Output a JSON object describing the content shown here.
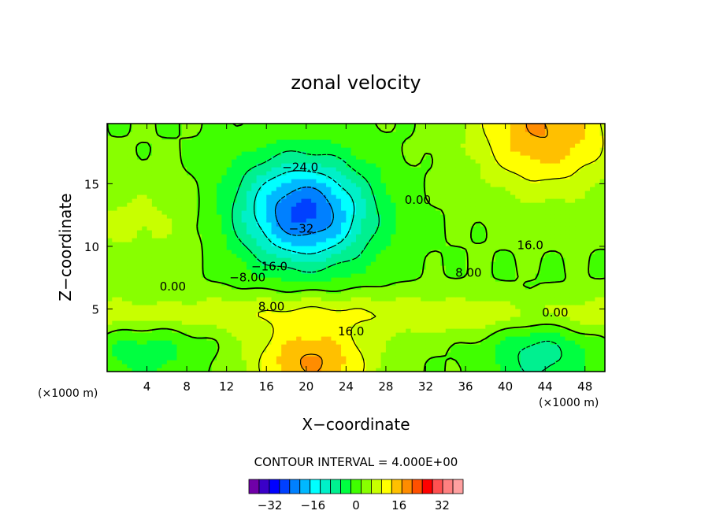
{
  "chart_data": {
    "type": "heatmap",
    "title": "zonal velocity",
    "xlabel": "X−coordinate",
    "ylabel": "Z−coordinate",
    "x_unit": "(×1000 m)",
    "x_unit_right": "(×1000 m)",
    "xlim": [
      0,
      50
    ],
    "ylim": [
      0,
      19.8
    ],
    "x_ticks": [
      4,
      8,
      12,
      16,
      20,
      24,
      28,
      32,
      36,
      40,
      44,
      48
    ],
    "x_tick_labels": [
      "4",
      "8",
      "12",
      "16",
      "20",
      "24",
      "28",
      "32",
      "36",
      "40",
      "44",
      "48"
    ],
    "y_ticks": [
      5,
      10,
      15
    ],
    "y_tick_labels": [
      "5",
      "10",
      "15"
    ],
    "contour_interval": 4,
    "contour_interval_text": "CONTOUR INTERVAL = 4.000E+00",
    "contour_labels": [
      {
        "text": "−24.0",
        "x": 19.4,
        "z": 16.3
      },
      {
        "text": "−16.0",
        "x": 16.3,
        "z": 8.4
      },
      {
        "text": "−8.00",
        "x": 14.1,
        "z": 7.5
      },
      {
        "text": "0.00",
        "x": 6.6,
        "z": 6.8
      },
      {
        "text": "8.00",
        "x": 16.5,
        "z": 5.2
      },
      {
        "text": "16.0",
        "x": 24.5,
        "z": 3.2
      },
      {
        "text": "0.00",
        "x": 31.2,
        "z": 13.7
      },
      {
        "text": "16.0",
        "x": 42.5,
        "z": 10.1
      },
      {
        "text": "8.00",
        "x": 36.3,
        "z": 7.9
      },
      {
        "text": "0.00",
        "x": 45.0,
        "z": 4.7
      },
      {
        "text": "−32",
        "x": 19.5,
        "z": 11.4
      }
    ],
    "field_features": [
      {
        "kind": "min",
        "x": 19.5,
        "z": 14.2,
        "value": -30
      },
      {
        "kind": "min",
        "x": 20.0,
        "z": 11.4,
        "value": -32
      },
      {
        "kind": "max",
        "x": 20.5,
        "z": 0.8,
        "value": 30
      },
      {
        "kind": "max",
        "x": 44.0,
        "z": 19.5,
        "value": 30
      },
      {
        "kind": "min",
        "x": 43.5,
        "z": 1.5,
        "value": -18
      },
      {
        "kind": "max",
        "x": 3.0,
        "z": 12.0,
        "value": 9
      }
    ],
    "colorbar": {
      "levels": [
        -36,
        -32,
        -28,
        -24,
        -20,
        -16,
        -12,
        -8,
        -4,
        0,
        4,
        8,
        12,
        16,
        20,
        24,
        28,
        32,
        36
      ],
      "tick_values": [
        -32,
        -16,
        0,
        16,
        32
      ],
      "tick_labels": [
        "−32",
        "−16",
        "0",
        "16",
        "32"
      ],
      "colors": [
        "#7000a8",
        "#3a00c8",
        "#0000ff",
        "#0040ff",
        "#0080ff",
        "#00b8ff",
        "#00ffff",
        "#00f0c8",
        "#00f090",
        "#00ff40",
        "#40ff00",
        "#88ff00",
        "#c8ff00",
        "#ffff00",
        "#ffc000",
        "#ff8c00",
        "#ff5000",
        "#ff0000",
        "#ff5050",
        "#ff8080",
        "#ffa0a0"
      ]
    }
  }
}
